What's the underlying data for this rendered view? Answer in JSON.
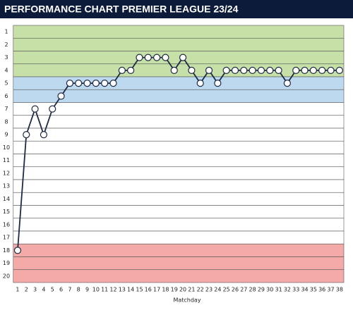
{
  "chart_data": {
    "type": "line",
    "title": "PERFORMANCE CHART PREMIER LEAGUE 23/24",
    "x_label": "Matchday",
    "x": [
      1,
      2,
      3,
      4,
      5,
      6,
      7,
      8,
      9,
      10,
      11,
      12,
      13,
      14,
      15,
      16,
      17,
      18,
      19,
      20,
      21,
      22,
      23,
      24,
      25,
      26,
      27,
      28,
      29,
      30,
      31,
      32,
      33,
      34,
      35,
      36,
      37,
      38
    ],
    "series": [
      {
        "color": "#1f2a44",
        "values": [
          18,
          9,
          7,
          9,
          7,
          6,
          5,
          5,
          5,
          5,
          5,
          5,
          4,
          4,
          3,
          3,
          3,
          3,
          4,
          3,
          4,
          5,
          4,
          5,
          4,
          4,
          4,
          4,
          4,
          4,
          4,
          5,
          4,
          4,
          4,
          4,
          4,
          4
        ]
      }
    ],
    "xlim": [
      0.5,
      38.5
    ],
    "xticks": [
      1,
      2,
      3,
      4,
      5,
      6,
      7,
      8,
      9,
      10,
      11,
      12,
      13,
      14,
      15,
      16,
      17,
      18,
      19,
      20,
      21,
      22,
      23,
      24,
      25,
      26,
      27,
      28,
      29,
      30,
      31,
      32,
      33,
      34,
      35,
      36,
      37,
      38
    ],
    "ylim": [
      20.5,
      0.5
    ],
    "yticks": [
      1,
      2,
      3,
      4,
      5,
      6,
      7,
      8,
      9,
      10,
      11,
      12,
      13,
      14,
      15,
      16,
      17,
      18,
      19,
      20
    ],
    "zones": [
      {
        "from": 1,
        "to": 4,
        "color": "#c6e0a8"
      },
      {
        "from": 5,
        "to": 6,
        "color": "#bdd9ef"
      },
      {
        "from": 7,
        "to": 17,
        "color": "#ffffff"
      },
      {
        "from": 18,
        "to": 20,
        "color": "#f4aba8"
      }
    ]
  }
}
